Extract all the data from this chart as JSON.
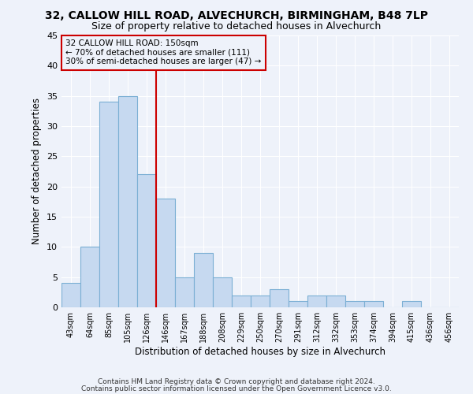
{
  "title1": "32, CALLOW HILL ROAD, ALVECHURCH, BIRMINGHAM, B48 7LP",
  "title2": "Size of property relative to detached houses in Alvechurch",
  "xlabel": "Distribution of detached houses by size in Alvechurch",
  "ylabel": "Number of detached properties",
  "bar_labels": [
    "43sqm",
    "64sqm",
    "85sqm",
    "105sqm",
    "126sqm",
    "146sqm",
    "167sqm",
    "188sqm",
    "208sqm",
    "229sqm",
    "250sqm",
    "270sqm",
    "291sqm",
    "312sqm",
    "332sqm",
    "353sqm",
    "374sqm",
    "394sqm",
    "415sqm",
    "436sqm",
    "456sqm"
  ],
  "bar_values": [
    4,
    10,
    34,
    35,
    22,
    18,
    5,
    9,
    5,
    2,
    2,
    3,
    1,
    2,
    2,
    1,
    1,
    0,
    1,
    0,
    0
  ],
  "bar_color": "#c6d9f0",
  "bar_edge_color": "#7bafd4",
  "highlight_line_color": "#cc0000",
  "annotation_text": "32 CALLOW HILL ROAD: 150sqm\n← 70% of detached houses are smaller (111)\n30% of semi-detached houses are larger (47) →",
  "annotation_box_color": "#cc0000",
  "ylim": [
    0,
    45
  ],
  "yticks": [
    0,
    5,
    10,
    15,
    20,
    25,
    30,
    35,
    40,
    45
  ],
  "footer1": "Contains HM Land Registry data © Crown copyright and database right 2024.",
  "footer2": "Contains public sector information licensed under the Open Government Licence v3.0.",
  "bg_color": "#eef2fa",
  "grid_color": "#ffffff",
  "fig_width": 6.0,
  "fig_height": 5.0
}
